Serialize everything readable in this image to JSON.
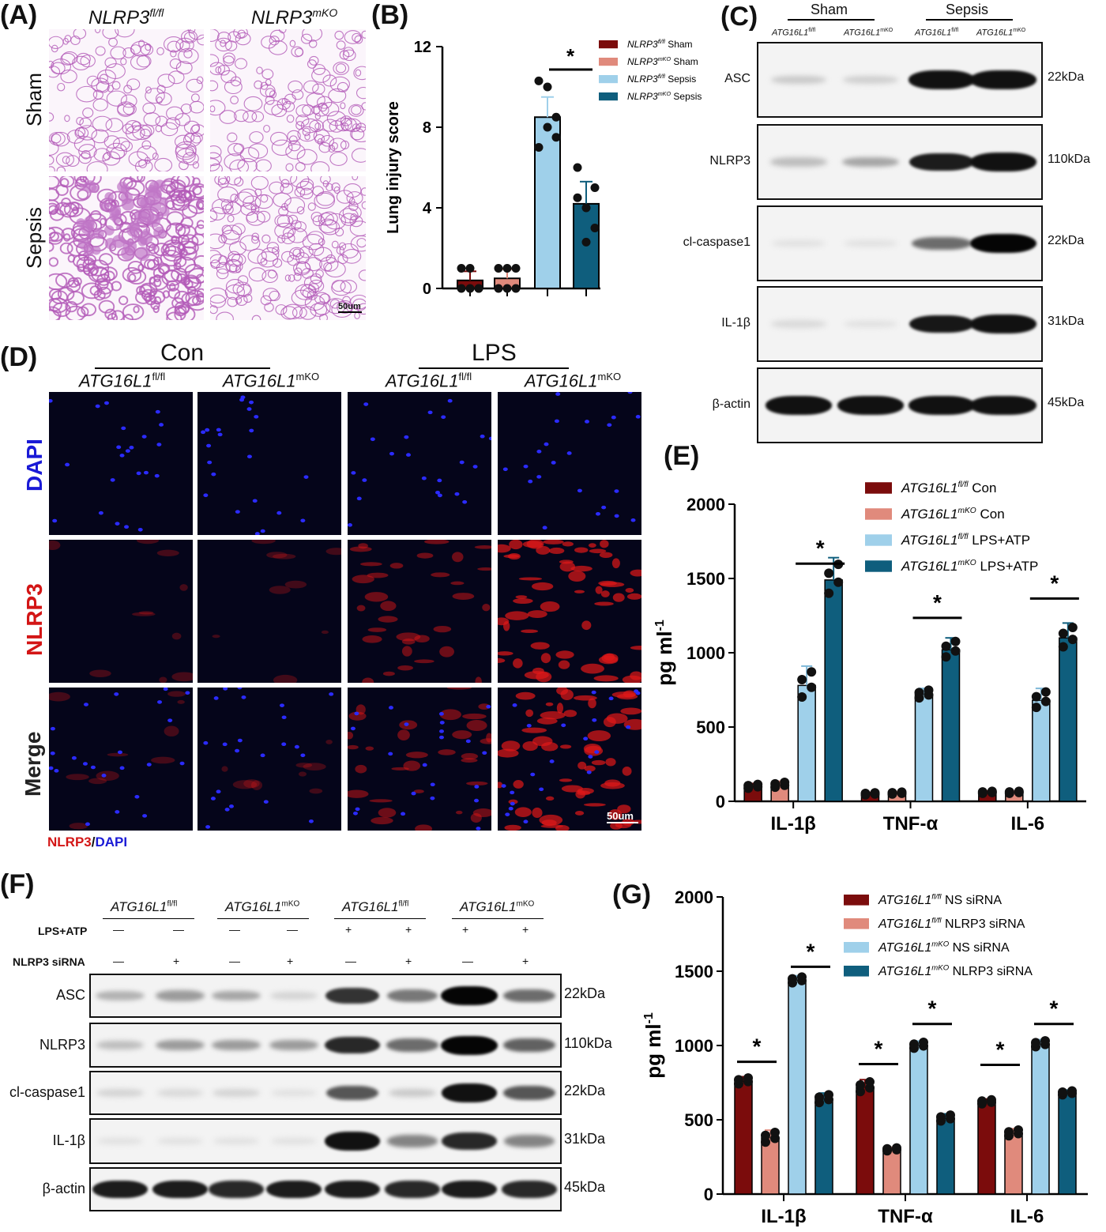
{
  "panelA": {
    "label": "(A)",
    "col1": "NLRP3",
    "col1_sup": "fl/fl",
    "col2": "NLRP3",
    "col2_sup": "mKO",
    "row1": "Sham",
    "row2": "Sepsis",
    "scale": "50um"
  },
  "panelB": {
    "label": "(B)",
    "chart_data": {
      "type": "bar",
      "ylabel": "Lung injury score",
      "ylim": [
        0,
        12
      ],
      "yticks": [
        0,
        4,
        8,
        12
      ],
      "series": [
        {
          "name": "NLRP3fl/fl Sham",
          "name_italic": "NLRP3",
          "name_sup": "fl/fl",
          "name_rest": " Sham",
          "value": 0.4,
          "error": 0.45,
          "points": [
            0,
            0,
            0,
            1,
            1,
            0
          ],
          "color": "#7b0c0c"
        },
        {
          "name": "NLRP3mKO Sham",
          "name_italic": "NLRP3",
          "name_sup": "mKO",
          "name_rest": " Sham",
          "value": 0.5,
          "error": 0.45,
          "points": [
            0,
            0,
            1,
            1,
            1,
            0
          ],
          "color": "#e08a7c"
        },
        {
          "name": "NLRP3fl/fl Sepsis",
          "name_italic": "NLRP3",
          "name_sup": "fl/fl",
          "name_rest": " Sepsis",
          "value": 8.5,
          "error": 1.0,
          "points": [
            10.3,
            10.0,
            8.5,
            7.0,
            8.0,
            7.5
          ],
          "color": "#9fd0ea"
        },
        {
          "name": "NLRP3mKO Sepsis",
          "name_italic": "NLRP3",
          "name_sup": "mKO",
          "name_rest": " Sepsis",
          "value": 4.2,
          "error": 1.1,
          "points": [
            6.0,
            4.0,
            3.0,
            4.5,
            2.3,
            5.0
          ],
          "color": "#0f5e7d"
        }
      ],
      "significance": "*"
    }
  },
  "panelC": {
    "label": "(C)",
    "group1": "Sham",
    "group2": "Sepsis",
    "lanes": [
      {
        "italic": "ATG16L1",
        "sup": "fl/fl"
      },
      {
        "italic": "ATG16L1",
        "sup": "mKO"
      },
      {
        "italic": "ATG16L1",
        "sup": "fl/fl"
      },
      {
        "italic": "ATG16L1",
        "sup": "mKO"
      }
    ],
    "blots": [
      {
        "name": "ASC",
        "kda": "22kDa",
        "intensity": [
          0.15,
          0.12,
          0.95,
          0.95
        ]
      },
      {
        "name": "NLRP3",
        "kda": "110kDa",
        "intensity": [
          0.2,
          0.3,
          0.9,
          0.95
        ]
      },
      {
        "name": "cl-caspase1",
        "kda": "22kDa",
        "intensity": [
          0.05,
          0.05,
          0.55,
          1.0
        ]
      },
      {
        "name": "IL-1β",
        "kda": "31kDa",
        "intensity": [
          0.08,
          0.05,
          0.92,
          0.95
        ]
      },
      {
        "name": "β-actin",
        "kda": "45kDa",
        "intensity": [
          0.95,
          0.95,
          0.95,
          0.95
        ]
      }
    ]
  },
  "panelD": {
    "label": "(D)",
    "group1": "Con",
    "group2": "LPS",
    "cols": [
      {
        "italic": "ATG16L1",
        "sup": "fl/fl"
      },
      {
        "italic": "ATG16L1",
        "sup": "mKO"
      },
      {
        "italic": "ATG16L1",
        "sup": "fl/fl"
      },
      {
        "italic": "ATG16L1",
        "sup": "mKO"
      }
    ],
    "rows": [
      "DAPI",
      "NLRP3",
      "Merge"
    ],
    "caption_red": "NLRP3",
    "caption_sep": "/",
    "caption_blue": "DAPI",
    "scale": "50um"
  },
  "panelE": {
    "label": "(E)",
    "chart_data": {
      "type": "bar",
      "ylabel": "pg ml",
      "ylabel_sup": "-1",
      "ylim": [
        0,
        2000
      ],
      "yticks": [
        0,
        500,
        1000,
        1500,
        2000
      ],
      "categories": [
        "IL-1β",
        "TNF-α",
        "IL-6"
      ],
      "series": [
        {
          "name": "ATG16L1fl/fl Con",
          "name_italic": "ATG16L1",
          "name_sup": "fl/fl",
          "name_rest": " Con",
          "values": [
            100,
            50,
            60
          ],
          "errors": [
            20,
            10,
            10
          ],
          "color": "#7b0c0c"
        },
        {
          "name": "ATG16L1mKO Con",
          "name_italic": "ATG16L1",
          "name_sup": "mKO",
          "name_rest": " Con",
          "values": [
            110,
            55,
            60
          ],
          "errors": [
            25,
            10,
            10
          ],
          "color": "#e08a7c"
        },
        {
          "name": "ATG16L1fl/fl LPS+ATP",
          "name_italic": "ATG16L1",
          "name_sup": "fl/fl",
          "name_rest": " LPS+ATP",
          "values": [
            780,
            720,
            680
          ],
          "errors": [
            130,
            40,
            80
          ],
          "color": "#9fd0ea"
        },
        {
          "name": "ATG16L1mKO LPS+ATP",
          "name_italic": "ATG16L1",
          "name_sup": "mKO",
          "name_rest": " LPS+ATP",
          "values": [
            1490,
            1020,
            1100
          ],
          "errors": [
            150,
            80,
            100
          ],
          "color": "#0f5e7d"
        }
      ],
      "significance": "*"
    }
  },
  "panelF": {
    "label": "(F)",
    "lanes": [
      {
        "italic": "ATG16L1",
        "sup": "fl/fl"
      },
      {
        "italic": "ATG16L1",
        "sup": "mKO"
      },
      {
        "italic": "ATG16L1",
        "sup": "fl/fl"
      },
      {
        "italic": "ATG16L1",
        "sup": "mKO"
      }
    ],
    "row1_label": "LPS+ATP",
    "row1_marks": [
      "—",
      "—",
      "—",
      "—",
      "+",
      "+",
      "+",
      "+"
    ],
    "row2_label": "NLRP3 siRNA",
    "row2_marks": [
      "—",
      "+",
      "—",
      "+",
      "—",
      "+",
      "—",
      "+"
    ],
    "blots": [
      {
        "name": "ASC",
        "kda": "22kDa",
        "intensity": [
          0.25,
          0.35,
          0.3,
          0.1,
          0.8,
          0.5,
          1.0,
          0.55
        ]
      },
      {
        "name": "NLRP3",
        "kda": "110kDa",
        "intensity": [
          0.2,
          0.35,
          0.35,
          0.35,
          0.85,
          0.55,
          1.0,
          0.6
        ]
      },
      {
        "name": "cl-caspase1",
        "kda": "22kDa",
        "intensity": [
          0.1,
          0.08,
          0.1,
          0.05,
          0.65,
          0.15,
          0.95,
          0.65
        ]
      },
      {
        "name": "IL-1β",
        "kda": "31kDa",
        "intensity": [
          0.05,
          0.05,
          0.05,
          0.05,
          0.95,
          0.45,
          0.85,
          0.45
        ]
      },
      {
        "name": "β-actin",
        "kda": "45kDa",
        "intensity": [
          0.9,
          0.9,
          0.85,
          0.9,
          0.9,
          0.85,
          0.9,
          0.85
        ]
      }
    ]
  },
  "panelG": {
    "label": "(G)",
    "chart_data": {
      "type": "bar",
      "ylabel": "pg ml",
      "ylabel_sup": "-1",
      "ylim": [
        0,
        2000
      ],
      "yticks": [
        0,
        500,
        1000,
        1500,
        2000
      ],
      "categories": [
        "IL-1β",
        "TNF-α",
        "IL-6"
      ],
      "series": [
        {
          "name": "ATG16L1fl/fl NS siRNA",
          "name_italic": "ATG16L1",
          "name_sup": "fl/fl",
          "name_rest": " NS siRNA",
          "values": [
            760,
            720,
            620
          ],
          "errors": [
            30,
            50,
            20
          ],
          "color": "#7b0c0c"
        },
        {
          "name": "ATG16L1fl/fl NLRP3 siRNA",
          "name_italic": "ATG16L1",
          "name_sup": "fl/fl",
          "name_rest": " NLRP3 siRNA",
          "values": [
            380,
            300,
            410
          ],
          "errors": [
            50,
            15,
            30
          ],
          "color": "#e08a7c"
        },
        {
          "name": "ATG16L1mKO NS siRNA",
          "name_italic": "ATG16L1",
          "name_sup": "mKO",
          "name_rest": " NS siRNA",
          "values": [
            1440,
            1000,
            1010
          ],
          "errors": [
            30,
            30,
            30
          ],
          "color": "#9fd0ea"
        },
        {
          "name": "ATG16L1mKO NLRP3 siRNA",
          "name_italic": "ATG16L1",
          "name_sup": "mKO",
          "name_rest": " NLRP3 siRNA",
          "values": [
            640,
            510,
            680
          ],
          "errors": [
            40,
            30,
            20
          ],
          "color": "#0f5e7d"
        }
      ],
      "significance": "*"
    }
  }
}
